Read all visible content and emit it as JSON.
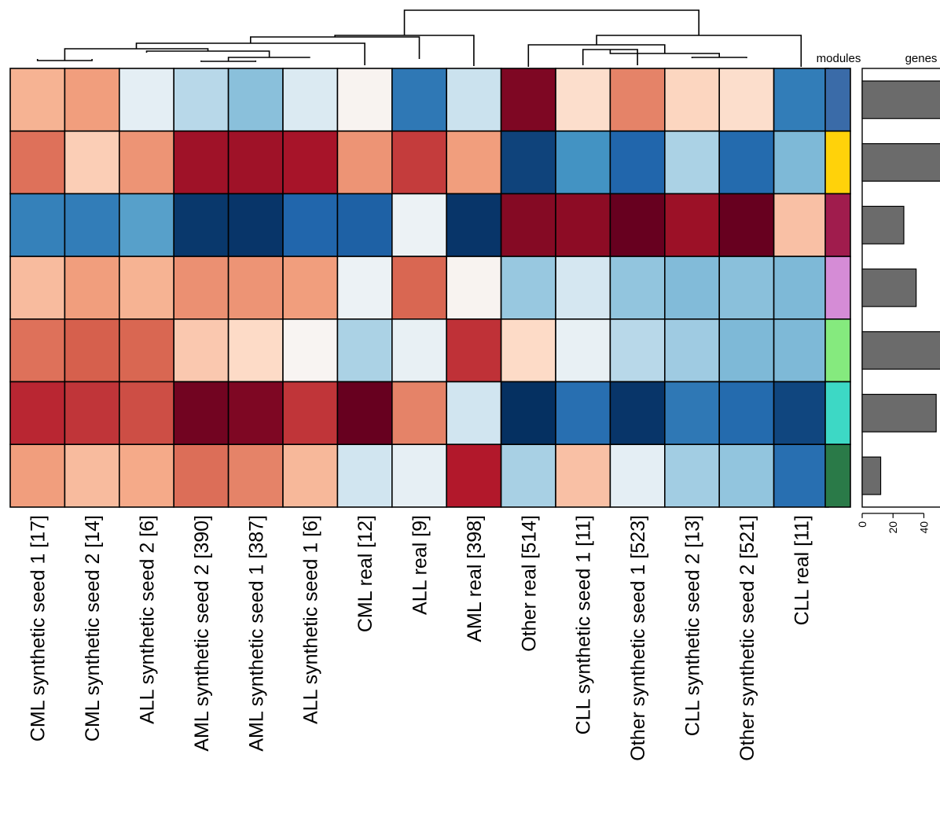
{
  "chart_data": {
    "type": "heatmap",
    "columns": [
      "CML synthetic seed 1  [17]",
      "CML synthetic seed 2  [14]",
      "ALL synthetic seed 2  [6]",
      "AML synthetic seed 2  [390]",
      "AML synthetic seed 1  [387]",
      "ALL synthetic seed 1  [6]",
      "CML real  [12]",
      "ALL real  [9]",
      "AML real  [398]",
      "Other real  [514]",
      "CLL synthetic seed 1  [11]",
      "Other synthetic seed 1  [523]",
      "CLL synthetic seed 2  [13]",
      "Other synthetic seed 2  [521]",
      "CLL real  [11]"
    ],
    "color_scale": {
      "min": -1,
      "max": 1,
      "stops": [
        "#053061",
        "#2166ac",
        "#4393c3",
        "#92c5de",
        "#d1e5f0",
        "#f7f7f7",
        "#fddbc7",
        "#f4a582",
        "#d6604d",
        "#b2182b",
        "#67001f"
      ]
    },
    "matrix": [
      [
        0.35,
        0.42,
        -0.1,
        -0.28,
        -0.42,
        -0.15,
        0.03,
        -0.72,
        -0.22,
        0.94,
        0.18,
        0.5,
        0.22,
        0.18,
        -0.7
      ],
      [
        0.55,
        0.25,
        0.45,
        0.85,
        0.85,
        0.83,
        0.45,
        0.7,
        0.42,
        -0.93,
        -0.6,
        -0.8,
        -0.32,
        -0.78,
        -0.45
      ],
      [
        -0.68,
        -0.7,
        -0.55,
        -0.97,
        -0.98,
        -0.8,
        -0.82,
        -0.06,
        -0.98,
        0.92,
        0.9,
        1.0,
        0.86,
        1.0,
        0.3
      ],
      [
        0.32,
        0.42,
        0.35,
        0.46,
        0.45,
        0.42,
        -0.06,
        0.58,
        0.03,
        -0.38,
        -0.18,
        -0.4,
        -0.44,
        -0.42,
        -0.45
      ],
      [
        0.55,
        0.6,
        0.58,
        0.27,
        0.2,
        0.02,
        -0.32,
        -0.08,
        0.73,
        0.2,
        -0.08,
        -0.28,
        -0.36,
        -0.45,
        -0.45
      ],
      [
        0.76,
        0.72,
        0.65,
        0.97,
        0.94,
        0.72,
        1.06,
        0.5,
        -0.2,
        -1.08,
        -0.76,
        -0.98,
        -0.72,
        -0.78,
        -0.92
      ],
      [
        0.42,
        0.32,
        0.38,
        0.56,
        0.5,
        0.33,
        -0.2,
        -0.09,
        0.8,
        -0.33,
        0.3,
        -0.1,
        -0.35,
        -0.4,
        -0.76
      ]
    ],
    "row_dendrogram_note": "column dendrogram shown above heatmap",
    "modules": {
      "title": "modules",
      "colors": [
        "#3a6ba8",
        "#ffd20a",
        "#a01c4d",
        "#d58cd6",
        "#85ea7e",
        "#3dd8c5",
        "#2a7a48"
      ]
    },
    "genes": {
      "title": "genes",
      "values": [
        52,
        53,
        27,
        35,
        52,
        48,
        12
      ],
      "axis_ticks": [
        "0",
        "20",
        "40"
      ],
      "xlim": [
        0,
        52
      ]
    }
  }
}
